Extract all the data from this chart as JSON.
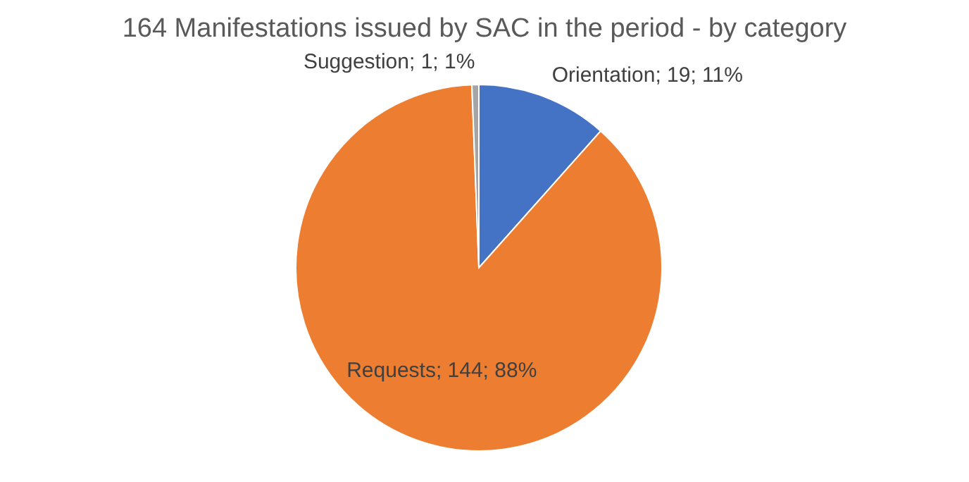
{
  "chart_data": {
    "type": "pie",
    "title": "164 Manifestations issued by SAC in the period - by category",
    "categories": [
      "Orientation",
      "Requests",
      "Suggestion"
    ],
    "values": [
      19,
      144,
      1
    ],
    "colors": [
      "#4472c4",
      "#ed7d31",
      "#a5a5a5"
    ],
    "value_labels": [
      "19; 11%",
      "144; 88%",
      "1; 1%"
    ]
  }
}
